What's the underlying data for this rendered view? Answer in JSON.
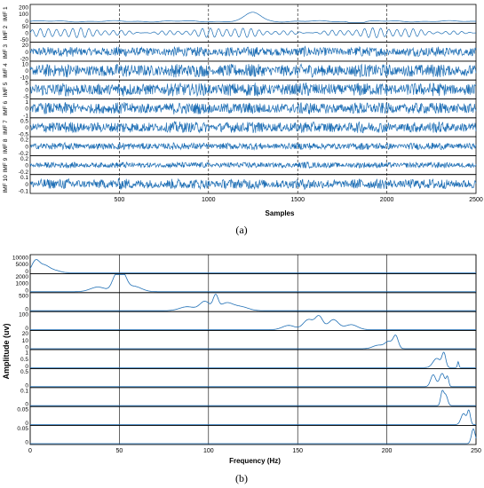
{
  "chart_data": [
    {
      "type": "line",
      "caption": "(a)",
      "xlabel": "Samples",
      "xlim": [
        0,
        2500
      ],
      "x_ticks": [
        "500",
        "1000",
        "1500",
        "2000",
        "2500"
      ],
      "grid": "vertical-dashed",
      "series_color": "#1f6fb5",
      "series": [
        {
          "ylabel": "IMF 1",
          "yticks": [
            "200",
            "100",
            "0"
          ],
          "ylim": [
            -10,
            220
          ],
          "shape": "slow",
          "bursts": [
            [
              1250,
              60,
              120
            ],
            [
              1830,
              40,
              -40
            ]
          ]
        },
        {
          "ylabel": "IMF 2",
          "yticks": [
            "50",
            "0",
            "-50"
          ],
          "ylim": [
            -60,
            60
          ],
          "shape": "osc",
          "cycles": 55,
          "amp": 30
        },
        {
          "ylabel": "IMF 3",
          "yticks": [
            "20",
            "0",
            "-20"
          ],
          "ylim": [
            -25,
            25
          ],
          "shape": "noise",
          "amp": 14
        },
        {
          "ylabel": "IMF 4",
          "yticks": [
            "10",
            "0",
            "-10"
          ],
          "ylim": [
            -12,
            12
          ],
          "shape": "noise",
          "amp": 9
        },
        {
          "ylabel": "IMF 5",
          "yticks": [
            "5",
            "0",
            "-5"
          ],
          "ylim": [
            -6,
            6
          ],
          "shape": "noise",
          "amp": 4.5
        },
        {
          "ylabel": "IMF 6",
          "yticks": [
            "1",
            "0",
            "-1"
          ],
          "ylim": [
            -1.2,
            1.2
          ],
          "shape": "noise",
          "amp": 0.8
        },
        {
          "ylabel": "IMF 7",
          "yticks": [
            "0.5",
            "0",
            "-0.5"
          ],
          "ylim": [
            -0.6,
            0.6
          ],
          "shape": "noise",
          "amp": 0.38
        },
        {
          "ylabel": "IMF 8",
          "yticks": [
            "0.2",
            "0",
            "-0.2"
          ],
          "ylim": [
            -0.3,
            0.3
          ],
          "shape": "noise",
          "amp": 0.12
        },
        {
          "ylabel": "IMF 9",
          "yticks": [
            "0.2",
            "0",
            "-0.2"
          ],
          "ylim": [
            -0.3,
            0.3
          ],
          "shape": "noise",
          "amp": 0.1
        },
        {
          "ylabel": "IMF 10",
          "yticks": [
            "0.1",
            "0",
            "-0.1"
          ],
          "ylim": [
            -0.12,
            0.12
          ],
          "shape": "noise",
          "amp": 0.07
        }
      ]
    },
    {
      "type": "line",
      "caption": "(b)",
      "xlabel": "Frequency (Hz)",
      "ylabel": "Amplitude (uv)",
      "xlim": [
        0,
        250
      ],
      "x_ticks": [
        "0",
        "50",
        "100",
        "150",
        "200",
        "250"
      ],
      "grid": "vertical",
      "series_color": "#1f6fb5",
      "series": [
        {
          "yticks": [
            "10000",
            "5000",
            "0"
          ],
          "ylim": [
            0,
            12000
          ],
          "peaks": [
            [
              3,
              3,
              8000
            ],
            [
              8,
              4,
              5000
            ],
            [
              14,
              4,
              1500
            ]
          ]
        },
        {
          "yticks": [
            "2000",
            "1000",
            "0"
          ],
          "ylim": [
            0,
            2200
          ],
          "peaks": [
            [
              38,
              6,
              600
            ],
            [
              48,
              3,
              1900
            ],
            [
              52,
              3,
              2000
            ],
            [
              58,
              6,
              700
            ]
          ]
        },
        {
          "yticks": [
            "500",
            "0"
          ],
          "ylim": [
            0,
            650
          ],
          "peaks": [
            [
              88,
              6,
              150
            ],
            [
              98,
              4,
              350
            ],
            [
              104,
              2,
              520
            ],
            [
              110,
              5,
              280
            ],
            [
              118,
              6,
              150
            ]
          ]
        },
        {
          "yticks": [
            "100",
            "0"
          ],
          "ylim": [
            0,
            120
          ],
          "peaks": [
            [
              145,
              5,
              30
            ],
            [
              156,
              4,
              70
            ],
            [
              162,
              3,
              90
            ],
            [
              170,
              4,
              70
            ],
            [
              180,
              5,
              35
            ]
          ]
        },
        {
          "yticks": [
            "20",
            "10",
            "0"
          ],
          "ylim": [
            0,
            25
          ],
          "peaks": [
            [
              195,
              4,
              5
            ],
            [
              201,
              3,
              10
            ],
            [
              205,
              2,
              18
            ]
          ]
        },
        {
          "yticks": [
            "1",
            "0.5",
            "0"
          ],
          "ylim": [
            0,
            1.3
          ],
          "peaks": [
            [
              228,
              3,
              0.7
            ],
            [
              232,
              1.5,
              1.05
            ],
            [
              240,
              0.6,
              0.45
            ]
          ]
        },
        {
          "yticks": [
            "0.5",
            "0"
          ],
          "ylim": [
            0,
            0.65
          ],
          "peaks": [
            [
              226,
              2,
              0.45
            ],
            [
              231,
              2,
              0.5
            ],
            [
              234,
              1,
              0.35
            ]
          ]
        },
        {
          "yticks": [
            "0.1",
            "0"
          ],
          "ylim": [
            0,
            0.13
          ],
          "peaks": [
            [
              231,
              1.2,
              0.1
            ],
            [
              233,
              1.5,
              0.08
            ]
          ]
        },
        {
          "yticks": [
            "0.05",
            "0"
          ],
          "ylim": [
            0,
            0.07
          ],
          "peaks": [
            [
              243,
              2,
              0.045
            ],
            [
              246,
              1.2,
              0.055
            ]
          ]
        },
        {
          "yticks": [
            "0.05",
            "0"
          ],
          "ylim": [
            0,
            0.07
          ],
          "peaks": [
            [
              248.5,
              1.5,
              0.06
            ]
          ]
        }
      ]
    }
  ]
}
